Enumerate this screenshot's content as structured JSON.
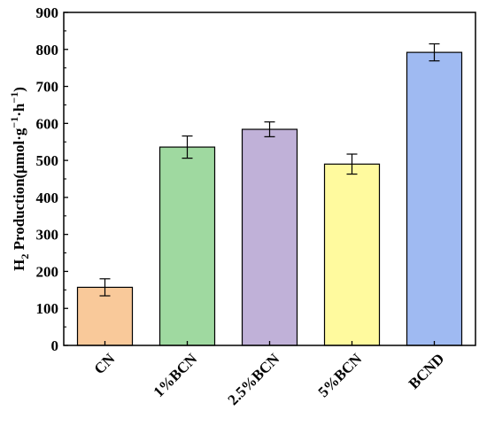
{
  "chart_data": {
    "type": "bar",
    "categories": [
      "CN",
      "1%BCN",
      "2.5%BCN",
      "5%BCN",
      "BCND"
    ],
    "values": [
      157,
      536,
      584,
      490,
      792
    ],
    "errors": [
      23,
      30,
      20,
      27,
      23
    ],
    "colors": [
      "#F9C99A",
      "#9FD9A0",
      "#C0B1D8",
      "#FFFA9E",
      "#9FBAF2"
    ],
    "ylabel": {
      "main": "H",
      "sub2": "2",
      "mid": " Production(μmol·g",
      "sup1": "−1",
      "dot": "·h",
      "sup2": "−1",
      "close": ")"
    },
    "ylim": [
      0,
      900
    ],
    "yticks": [
      0,
      100,
      200,
      300,
      400,
      500,
      600,
      700,
      800,
      900
    ],
    "grid": false,
    "legend": "none"
  }
}
